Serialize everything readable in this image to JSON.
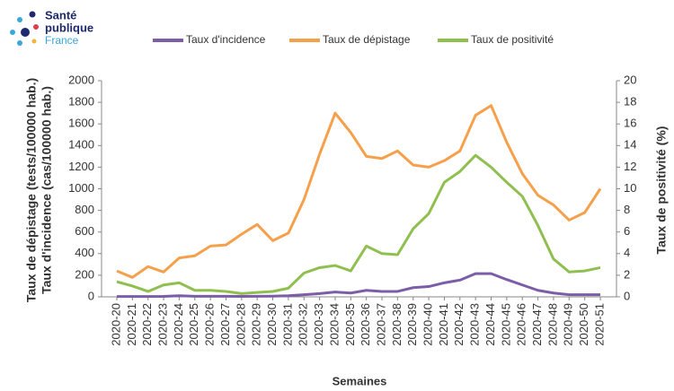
{
  "logo": {
    "lines": [
      "Santé",
      "publique",
      "France"
    ]
  },
  "chart_data": {
    "type": "line",
    "xlabel": "Semaines",
    "ylabels": [
      "Taux de dépistage (tests/100000 hab.)",
      "Taux d'incidence (cas/100000 hab.)"
    ],
    "y2label": "Taux de positivité (%)",
    "categories": [
      "2020-20",
      "2020-21",
      "2020-22",
      "2020-23",
      "2020-24",
      "2020-25",
      "2020-26",
      "2020-27",
      "2020-28",
      "2020-29",
      "2020-30",
      "2020-31",
      "2020-32",
      "2020-33",
      "2020-34",
      "2020-35",
      "2020-36",
      "2020-37",
      "2020-38",
      "2020-39",
      "2020-40",
      "2020-41",
      "2020-42",
      "2020-43",
      "2020-44",
      "2020-45",
      "2020-46",
      "2020-47",
      "2020-48",
      "2020-49",
      "2020-50",
      "2020-51"
    ],
    "series": [
      {
        "name": "Taux d'incidence",
        "color": "#7b5ea7",
        "values": [
          3,
          3,
          3,
          4,
          10,
          5,
          5,
          5,
          4,
          5,
          6,
          10,
          20,
          30,
          45,
          35,
          60,
          50,
          50,
          85,
          95,
          130,
          155,
          215,
          215,
          160,
          110,
          60,
          35,
          20,
          20,
          20
        ]
      },
      {
        "name": "Taux de dépistage",
        "color": "#f7a04b",
        "values": [
          240,
          180,
          280,
          230,
          360,
          380,
          470,
          480,
          580,
          670,
          520,
          590,
          900,
          1320,
          1700,
          1520,
          1300,
          1280,
          1350,
          1220,
          1200,
          1260,
          1350,
          1680,
          1770,
          1430,
          1140,
          940,
          850,
          710,
          780,
          1000
        ]
      },
      {
        "name": "Taux de positivité",
        "color": "#8fbf4f",
        "axis": "y2",
        "values": [
          1.4,
          1.0,
          0.5,
          1.1,
          1.3,
          0.6,
          0.6,
          0.5,
          0.3,
          0.4,
          0.5,
          0.8,
          2.2,
          2.7,
          2.9,
          2.4,
          4.7,
          4.0,
          3.9,
          6.3,
          7.7,
          10.6,
          11.6,
          13.1,
          12.0,
          10.6,
          9.3,
          6.6,
          3.5,
          2.3,
          2.4,
          2.7
        ]
      }
    ],
    "ylim": [
      0,
      2000
    ],
    "yticks": [
      0,
      200,
      400,
      600,
      800,
      1000,
      1200,
      1400,
      1600,
      1800,
      2000
    ],
    "y2lim": [
      0,
      20
    ],
    "y2ticks": [
      0,
      2,
      4,
      6,
      8,
      10,
      12,
      14,
      16,
      18,
      20
    ]
  }
}
